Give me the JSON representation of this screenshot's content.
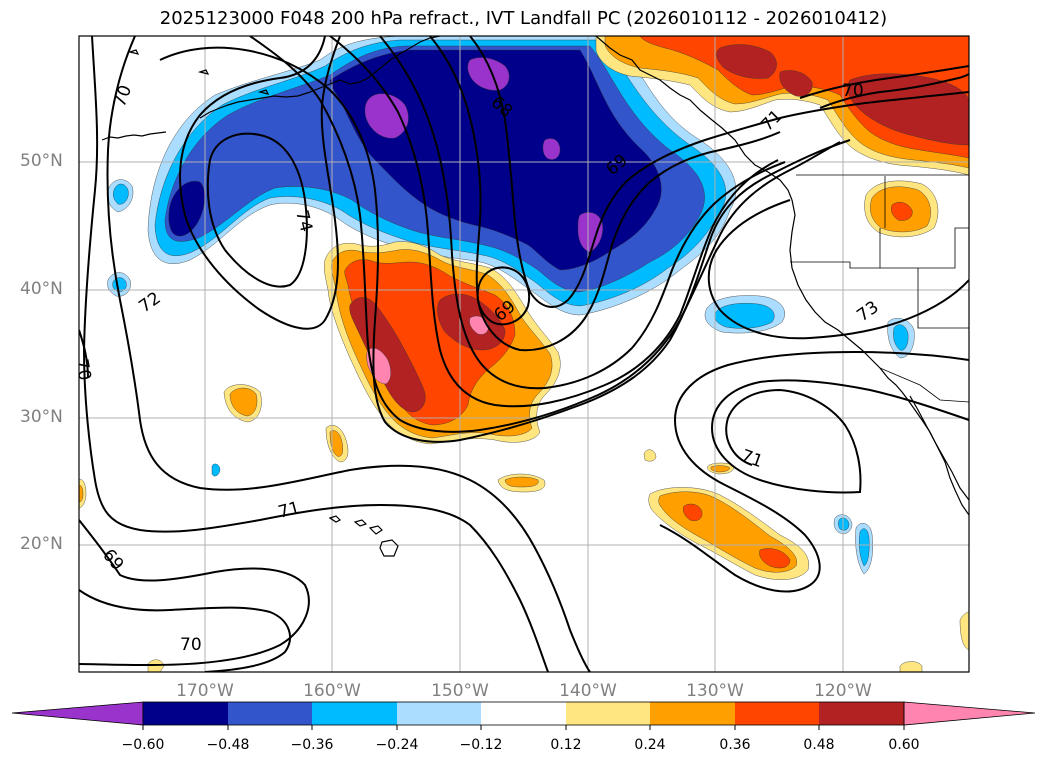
{
  "title": "2025123000 F048 200 hPa refract., IVT Landfall PC (2026010112 - 2026010412)",
  "lat_labels": [
    "50°N",
    "40°N",
    "30°N",
    "20°N"
  ],
  "lon_labels": [
    "170°W",
    "160°W",
    "150°W",
    "140°W",
    "130°W",
    "120°W"
  ],
  "contour_labels": [
    "70",
    "72",
    "74",
    "68",
    "69",
    "71",
    "70",
    "73",
    "70",
    "69",
    "71",
    "69",
    "70",
    "71"
  ],
  "colorbar": {
    "tick_labels": [
      "−0.60",
      "−0.48",
      "−0.36",
      "−0.24",
      "−0.12",
      "0.12",
      "0.24",
      "0.36",
      "0.48",
      "0.60"
    ],
    "colors": [
      "#9933cc",
      "#00008b",
      "#3355cc",
      "#00bbff",
      "#aaddff",
      "#ffffff",
      "#ffe680",
      "#ffa000",
      "#ff4500",
      "#b22222",
      "#ff85b0"
    ]
  },
  "shading_colors": {
    "purple": "#9933cc",
    "navy": "#00008b",
    "royal": "#3355cc",
    "cyan": "#00bbff",
    "light_blue": "#aaddff",
    "light_yellow": "#ffe680",
    "orange": "#ffa000",
    "red_orange": "#ff4500",
    "firebrick": "#b22222",
    "pink": "#ff85b0"
  }
}
